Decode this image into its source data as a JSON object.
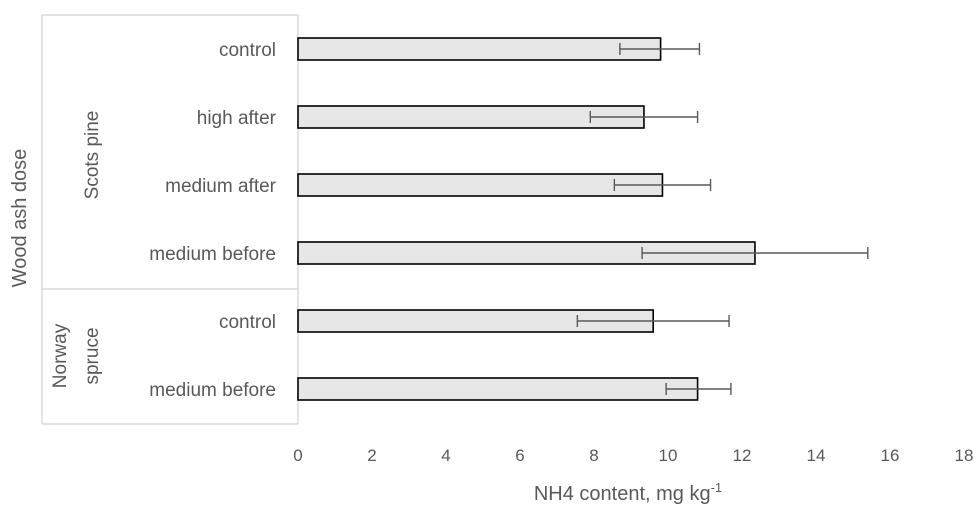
{
  "chart_data": {
    "type": "bar",
    "orientation": "horizontal",
    "categories": [
      "control",
      "high after",
      "medium after",
      "medium before",
      "control",
      "medium before"
    ],
    "groups": [
      {
        "name": "Scots pine",
        "categories": [
          "control",
          "high after",
          "medium after",
          "medium before"
        ]
      },
      {
        "name": "Norway spruce",
        "name_lines": [
          "Norway",
          "spruce"
        ],
        "categories": [
          "control",
          "medium before"
        ]
      }
    ],
    "values": [
      9.8,
      9.35,
      9.85,
      12.35,
      9.6,
      10.8
    ],
    "error_low": [
      8.7,
      7.9,
      8.55,
      9.3,
      7.55,
      9.95
    ],
    "error_high": [
      10.85,
      10.8,
      11.15,
      15.4,
      11.65,
      11.7
    ],
    "xlabel": "NH4 content, mg kg",
    "xlabel_sup": "-1",
    "ylabel": "Wood ash dose",
    "xlim": [
      0,
      18
    ],
    "xticks": [
      "0",
      "2",
      "4",
      "6",
      "8",
      "10",
      "12",
      "14",
      "16",
      "18"
    ],
    "grid": false,
    "legend": "none",
    "bar_color": "#e7e6e6",
    "bar_outline": "#000000"
  }
}
